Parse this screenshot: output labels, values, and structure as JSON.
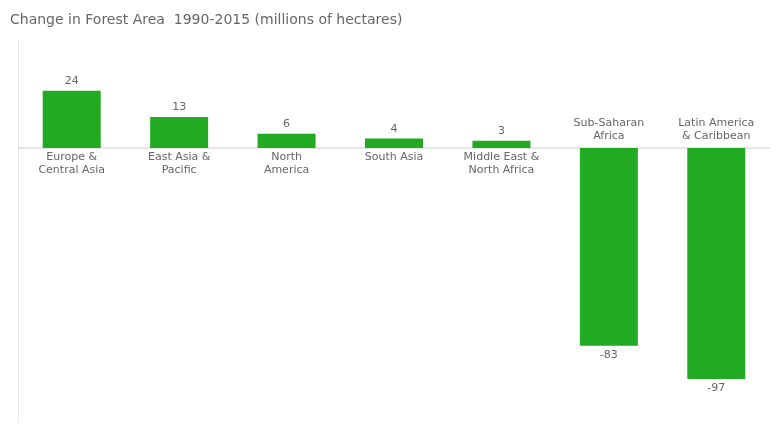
{
  "chart_data": {
    "type": "bar",
    "title": "Change in Forest Area  1990-2015 (millions of hectares)",
    "categories": [
      "Europe &\nCentral Asia",
      "East Asia &\nPacific",
      "North\nAmerica",
      "South Asia",
      "Middle East &\nNorth Africa",
      "Sub-Saharan\nAfrica",
      "Latin America\n& Caribbean"
    ],
    "values": [
      24,
      13,
      6,
      4,
      3,
      -83,
      -97
    ],
    "color": "#22aa22",
    "ylim": [
      -115,
      45
    ],
    "grid": false,
    "data_labels": true,
    "tick_labels": false
  }
}
